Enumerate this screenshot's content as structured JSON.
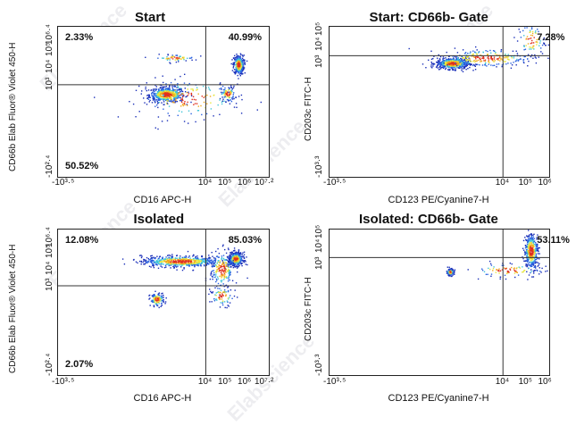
{
  "watermark": "Elabscience",
  "chart_data": [
    {
      "type": "scatter",
      "title": "Start",
      "xlabel": "CD16 APC-H",
      "ylabel": "CD66b Elab Fluor® Violet 450-H",
      "x_ticks": [
        "-10³·⁵",
        "10⁴",
        "10⁵",
        "10⁶",
        "10⁷·²"
      ],
      "y_ticks": [
        "-10²·⁴",
        "10³",
        "10⁴",
        "10⁵",
        "10⁶·⁴"
      ],
      "quadrants": {
        "ul": "2.33%",
        "ur": "40.99%",
        "ll": "50.52%",
        "lr": ""
      },
      "gate_x": 4.0,
      "gate_y": 3.0,
      "xlim": [
        -3.5,
        7.2
      ],
      "ylim": [
        -2.4,
        6.4
      ],
      "clusters": [
        {
          "x": 2.0,
          "y": 2.45,
          "sx": 0.45,
          "sy": 0.22,
          "n": 520
        },
        {
          "x": 5.65,
          "y": 4.2,
          "sx": 0.13,
          "sy": 0.28,
          "n": 360
        },
        {
          "x": 5.1,
          "y": 2.5,
          "sx": 0.18,
          "sy": 0.22,
          "n": 90
        },
        {
          "x": 2.4,
          "y": 4.6,
          "sx": 0.5,
          "sy": 0.1,
          "n": 60
        },
        {
          "x": 3.2,
          "y": 2.2,
          "sx": 1.3,
          "sy": 0.6,
          "n": 170
        }
      ]
    },
    {
      "type": "scatter",
      "title": "Start: CD66b- Gate",
      "xlabel": "CD123 PE/Cyanine7-H",
      "ylabel": "CD203c FITC-H",
      "x_ticks": [
        "-10³·⁵",
        "10⁴",
        "10⁵",
        "10⁶"
      ],
      "y_ticks": [
        "-10³·³",
        "10³",
        "10⁴",
        "10⁵"
      ],
      "quadrants": {
        "ul": "",
        "ur": "7.28%",
        "ll": "",
        "lr": ""
      },
      "gate_x": 4.0,
      "gate_y": 3.4,
      "xlim": [
        -3.5,
        6.0
      ],
      "ylim": [
        -3.3,
        5.0
      ],
      "clusters": [
        {
          "x": 1.8,
          "y": 3.0,
          "sx": 0.35,
          "sy": 0.15,
          "n": 600
        },
        {
          "x": 3.3,
          "y": 3.3,
          "sx": 1.0,
          "sy": 0.25,
          "n": 240
        },
        {
          "x": 5.2,
          "y": 4.3,
          "sx": 0.3,
          "sy": 0.45,
          "n": 80
        }
      ]
    },
    {
      "type": "scatter",
      "title": "Isolated",
      "xlabel": "CD16 APC-H",
      "ylabel": "CD66b Elab Fluor® Violet 450-H",
      "x_ticks": [
        "-10³·⁵",
        "10⁴",
        "10⁵",
        "10⁶",
        "10⁷·²"
      ],
      "y_ticks": [
        "-10²·⁴",
        "10³",
        "10⁴",
        "10⁵",
        "10⁶·⁴"
      ],
      "quadrants": {
        "ul": "12.08%",
        "ur": "85.03%",
        "ll": "2.07%",
        "lr": ""
      },
      "gate_x": 4.0,
      "gate_y": 3.0,
      "xlim": [
        -3.5,
        7.2
      ],
      "ylim": [
        -2.4,
        6.4
      ],
      "clusters": [
        {
          "x": 2.7,
          "y": 4.5,
          "sx": 1.0,
          "sy": 0.17,
          "n": 620
        },
        {
          "x": 5.5,
          "y": 4.65,
          "sx": 0.18,
          "sy": 0.2,
          "n": 500
        },
        {
          "x": 4.8,
          "y": 4.0,
          "sx": 0.3,
          "sy": 0.55,
          "n": 200
        },
        {
          "x": 1.5,
          "y": 2.2,
          "sx": 0.18,
          "sy": 0.2,
          "n": 130
        },
        {
          "x": 4.8,
          "y": 2.4,
          "sx": 0.3,
          "sy": 0.3,
          "n": 80
        }
      ]
    },
    {
      "type": "scatter",
      "title": "Isolated: CD66b- Gate",
      "xlabel": "CD123 PE/Cyanine7-H",
      "ylabel": "CD203c FITC-H",
      "x_ticks": [
        "-10³·⁵",
        "10⁴",
        "10⁵",
        "10⁶"
      ],
      "y_ticks": [
        "-10³·³",
        "10³",
        "10⁴",
        "10⁵"
      ],
      "quadrants": {
        "ul": "",
        "ur": "53.11%",
        "ll": "",
        "lr": ""
      },
      "gate_x": 4.0,
      "gate_y": 3.4,
      "xlim": [
        -3.5,
        6.0
      ],
      "ylim": [
        -3.3,
        5.0
      ],
      "clusters": [
        {
          "x": 5.2,
          "y": 3.8,
          "sx": 0.15,
          "sy": 0.5,
          "n": 380
        },
        {
          "x": 1.7,
          "y": 2.6,
          "sx": 0.08,
          "sy": 0.1,
          "n": 120
        },
        {
          "x": 4.2,
          "y": 2.7,
          "sx": 0.8,
          "sy": 0.2,
          "n": 90
        }
      ]
    }
  ]
}
